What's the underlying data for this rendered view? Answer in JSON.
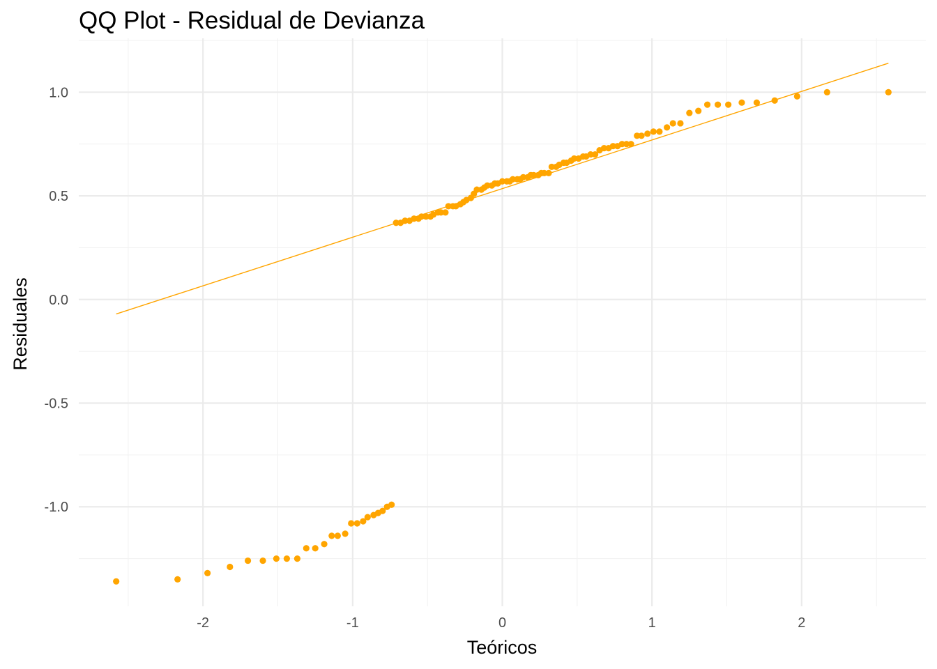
{
  "chart_data": {
    "type": "scatter",
    "title": "QQ Plot - Residual de Devianza",
    "xlabel": "Teóricos",
    "ylabel": "Residuales",
    "xlim": [
      -2.83,
      2.83
    ],
    "ylim": [
      -1.48,
      1.26
    ],
    "x_ticks": [
      -2,
      -1,
      0,
      1,
      2
    ],
    "x_tick_labels": [
      "-2",
      "-1",
      "0",
      "1",
      "2"
    ],
    "y_ticks": [
      -1.0,
      -0.5,
      0.0,
      0.5,
      1.0
    ],
    "y_tick_labels": [
      "-1.0",
      "-0.5",
      "0.0",
      "0.5",
      "1.0"
    ],
    "grid": true,
    "point_color": "#FFA500",
    "reference_line": {
      "x": [
        -2.58,
        2.58
      ],
      "y": [
        -0.07,
        1.14
      ]
    },
    "points": {
      "x": [
        -2.58,
        -2.17,
        -1.97,
        -1.82,
        -1.7,
        -1.6,
        -1.51,
        -1.44,
        -1.37,
        -1.31,
        -1.25,
        -1.19,
        -1.14,
        -1.1,
        -1.05,
        -1.01,
        -0.97,
        -0.93,
        -0.9,
        -0.86,
        -0.83,
        -0.8,
        -0.77,
        -0.74,
        -0.71,
        -0.68,
        -0.65,
        -0.62,
        -0.59,
        -0.56,
        -0.54,
        -0.51,
        -0.48,
        -0.46,
        -0.43,
        -0.41,
        -0.38,
        -0.36,
        -0.33,
        -0.31,
        -0.28,
        -0.26,
        -0.24,
        -0.21,
        -0.19,
        -0.17,
        -0.14,
        -0.12,
        -0.1,
        -0.07,
        -0.05,
        -0.03,
        0.0,
        0.03,
        0.05,
        0.07,
        0.1,
        0.12,
        0.14,
        0.17,
        0.19,
        0.21,
        0.24,
        0.26,
        0.28,
        0.31,
        0.33,
        0.36,
        0.38,
        0.41,
        0.43,
        0.46,
        0.48,
        0.51,
        0.54,
        0.56,
        0.59,
        0.62,
        0.65,
        0.68,
        0.71,
        0.74,
        0.77,
        0.8,
        0.83,
        0.86,
        0.9,
        0.93,
        0.97,
        1.01,
        1.05,
        1.1,
        1.14,
        1.19,
        1.25,
        1.31,
        1.37,
        1.44,
        1.51,
        1.6,
        1.7,
        1.82,
        1.97,
        2.17,
        2.58
      ],
      "y": [
        -1.36,
        -1.35,
        -1.32,
        -1.29,
        -1.26,
        -1.26,
        -1.25,
        -1.25,
        -1.25,
        -1.2,
        -1.2,
        -1.18,
        -1.14,
        -1.14,
        -1.13,
        -1.08,
        -1.08,
        -1.07,
        -1.05,
        -1.04,
        -1.03,
        -1.02,
        -1.0,
        -0.99,
        0.37,
        0.37,
        0.38,
        0.38,
        0.39,
        0.39,
        0.4,
        0.4,
        0.4,
        0.41,
        0.42,
        0.42,
        0.42,
        0.45,
        0.45,
        0.45,
        0.46,
        0.47,
        0.48,
        0.49,
        0.51,
        0.53,
        0.53,
        0.54,
        0.55,
        0.55,
        0.56,
        0.56,
        0.57,
        0.57,
        0.57,
        0.58,
        0.58,
        0.58,
        0.59,
        0.59,
        0.6,
        0.6,
        0.6,
        0.61,
        0.61,
        0.61,
        0.64,
        0.64,
        0.65,
        0.66,
        0.66,
        0.67,
        0.68,
        0.68,
        0.69,
        0.69,
        0.7,
        0.7,
        0.72,
        0.73,
        0.73,
        0.74,
        0.74,
        0.75,
        0.75,
        0.75,
        0.79,
        0.79,
        0.8,
        0.81,
        0.81,
        0.83,
        0.85,
        0.85,
        0.9,
        0.91,
        0.94,
        0.94,
        0.94,
        0.95,
        0.95,
        0.96,
        0.98,
        1.0,
        1.0
      ]
    }
  }
}
